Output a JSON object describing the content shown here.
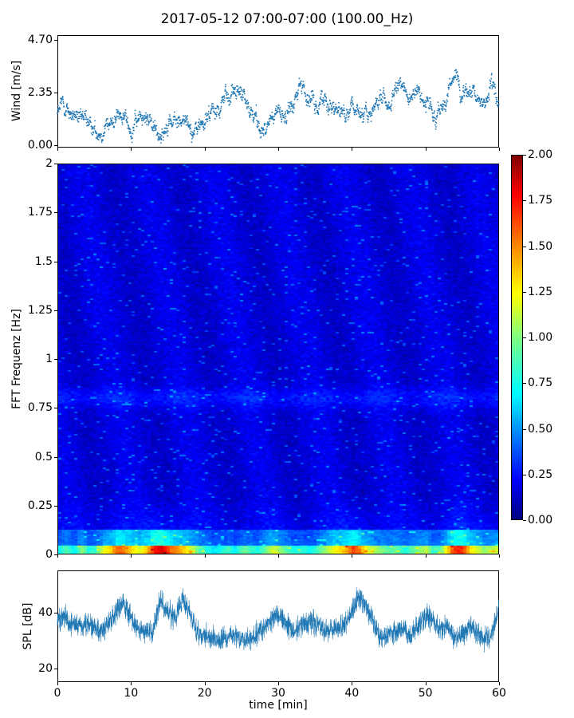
{
  "title": "2017-05-12 07:00-07:00 (100.00_Hz)",
  "chart_data": [
    {
      "type": "scatter",
      "ylabel": "Wind [m/s]",
      "ylim": [
        0,
        4.7
      ],
      "yticks": [
        "0.00",
        "2.35",
        "4.70"
      ],
      "xlim": [
        0,
        60
      ],
      "color": "#1f77b4",
      "x": [
        0,
        1,
        2,
        3,
        4,
        5,
        6,
        7,
        8,
        9,
        10,
        11,
        12,
        13,
        14,
        15,
        16,
        17,
        18,
        19,
        20,
        21,
        22,
        23,
        24,
        25,
        26,
        27,
        28,
        29,
        30,
        31,
        32,
        33,
        34,
        35,
        36,
        37,
        38,
        39,
        40,
        41,
        42,
        43,
        44,
        45,
        46,
        47,
        48,
        49,
        50,
        51,
        52,
        53,
        54,
        55,
        56,
        57,
        58,
        59,
        60
      ],
      "y": [
        1.6,
        1.7,
        1.3,
        1.0,
        1.1,
        0.6,
        0.5,
        0.6,
        1.2,
        1.1,
        0.9,
        1.0,
        1.5,
        0.7,
        0.5,
        1.0,
        1.1,
        1.3,
        0.6,
        0.6,
        1.1,
        1.4,
        1.6,
        2.1,
        2.5,
        2.2,
        1.6,
        1.2,
        0.7,
        1.2,
        1.4,
        1.5,
        1.6,
        2.8,
        2.3,
        1.9,
        2.0,
        1.9,
        1.6,
        1.5,
        1.8,
        1.2,
        1.4,
        1.7,
        1.9,
        1.7,
        2.3,
        2.6,
        2.3,
        2.2,
        1.6,
        1.8,
        1.4,
        1.9,
        3.4,
        2.3,
        2.2,
        2.1,
        2.0,
        2.6,
        1.9
      ]
    },
    {
      "type": "heatmap",
      "ylabel": "FFT Frequenz [Hz]",
      "ylim": [
        0,
        2
      ],
      "yticks": [
        "0",
        "0.25",
        "0.5",
        "0.75",
        "1",
        "1.25",
        "1.5",
        "1.75",
        "2"
      ],
      "xlim": [
        0,
        60
      ],
      "colorbar": {
        "range": [
          0,
          2
        ],
        "ticks": [
          "0.00",
          "0.25",
          "0.50",
          "0.75",
          "1.00",
          "1.25",
          "1.50",
          "1.75",
          "2.00"
        ],
        "colormap": "jet"
      }
    },
    {
      "type": "line",
      "ylabel": "SPL [dB]",
      "xlabel": "time [min]",
      "ylim": [
        15,
        55
      ],
      "yticks": [
        "20",
        "40"
      ],
      "xlim": [
        0,
        60
      ],
      "xticks": [
        "0",
        "10",
        "20",
        "30",
        "40",
        "50",
        "60"
      ],
      "color": "#1f77b4",
      "x": [
        0,
        1,
        2,
        3,
        4,
        5,
        6,
        7,
        8,
        9,
        10,
        11,
        12,
        13,
        14,
        15,
        16,
        17,
        18,
        19,
        20,
        21,
        22,
        23,
        24,
        25,
        26,
        27,
        28,
        29,
        30,
        31,
        32,
        33,
        34,
        35,
        36,
        37,
        38,
        39,
        40,
        41,
        42,
        43,
        44,
        45,
        46,
        47,
        48,
        49,
        50,
        51,
        52,
        53,
        54,
        55,
        56,
        57,
        58,
        59,
        60
      ],
      "y": [
        37,
        38,
        36,
        35,
        36,
        34,
        33,
        36,
        40,
        44,
        38,
        34,
        33,
        33,
        44,
        40,
        38,
        45,
        39,
        33,
        32,
        31,
        30,
        31,
        32,
        31,
        30,
        32,
        34,
        37,
        40,
        36,
        33,
        35,
        36,
        36,
        34,
        33,
        35,
        36,
        40,
        46,
        42,
        36,
        30,
        32,
        33,
        34,
        31,
        36,
        39,
        37,
        34,
        35,
        31,
        32,
        35,
        33,
        31,
        32,
        42
      ]
    }
  ]
}
